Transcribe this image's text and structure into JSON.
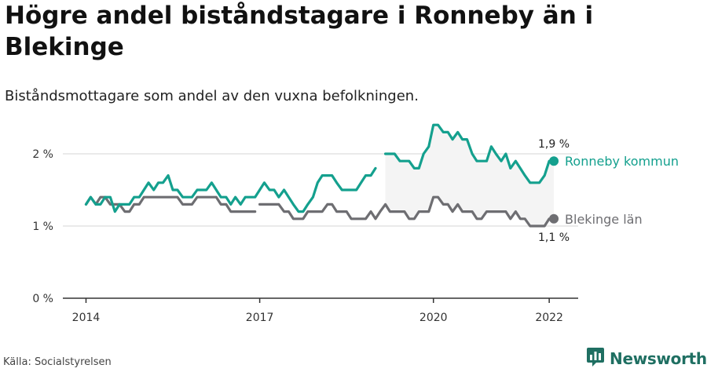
{
  "title": "Högre andel biståndstagare i Ronneby än i Blekinge",
  "subtitle": "Biståndsmottagare som andel av den vuxna befolkningen.",
  "source": "Källa: Socialstyrelsen",
  "brand": {
    "name": "Newsworthy",
    "logo_icon": "bar-chart-icon",
    "color": "#1f6f62"
  },
  "chart_data": {
    "type": "line",
    "ylim": [
      0,
      2.5
    ],
    "xlim": [
      2013.6,
      2022.5
    ],
    "y_ticks": [
      {
        "value": 0,
        "label": "0 %"
      },
      {
        "value": 1,
        "label": "1 %"
      },
      {
        "value": 2,
        "label": "2 %"
      }
    ],
    "x_ticks": [
      {
        "value": 2014,
        "label": "2014"
      },
      {
        "value": 2017,
        "label": "2017"
      },
      {
        "value": 2020,
        "label": "2020"
      },
      {
        "value": 2022,
        "label": "2022"
      }
    ],
    "grid": true,
    "series": [
      {
        "name": "Ronneby kommun",
        "color": "#14a08e",
        "end_label": "1,9 %",
        "segments": [
          {
            "x": [
              2014.0,
              2014.08,
              2014.17,
              2014.25,
              2014.33,
              2014.42,
              2014.5,
              2014.58,
              2014.67,
              2014.75,
              2014.83,
              2014.92,
              2015.0,
              2015.08,
              2015.17,
              2015.25,
              2015.33,
              2015.42,
              2015.5,
              2015.58,
              2015.67,
              2015.75,
              2015.83,
              2015.92,
              2016.0,
              2016.08,
              2016.17,
              2016.25,
              2016.33,
              2016.42,
              2016.5,
              2016.58,
              2016.67,
              2016.75,
              2016.83,
              2016.92,
              2017.0,
              2017.08,
              2017.17,
              2017.25,
              2017.33,
              2017.42,
              2017.5,
              2017.58,
              2017.67,
              2017.75,
              2017.83,
              2017.92,
              2018.0,
              2018.08,
              2018.17,
              2018.25,
              2018.33,
              2018.42,
              2018.5,
              2018.58,
              2018.67,
              2018.75,
              2018.83,
              2018.92,
              2019.0
            ],
            "y": [
              1.3,
              1.4,
              1.3,
              1.3,
              1.4,
              1.4,
              1.2,
              1.3,
              1.3,
              1.3,
              1.4,
              1.4,
              1.5,
              1.6,
              1.5,
              1.6,
              1.6,
              1.7,
              1.5,
              1.5,
              1.4,
              1.4,
              1.4,
              1.5,
              1.5,
              1.5,
              1.6,
              1.5,
              1.4,
              1.4,
              1.3,
              1.4,
              1.3,
              1.4,
              1.4,
              1.4,
              1.5,
              1.6,
              1.5,
              1.5,
              1.4,
              1.5,
              1.4,
              1.3,
              1.2,
              1.2,
              1.3,
              1.4,
              1.6,
              1.7,
              1.7,
              1.7,
              1.6,
              1.5,
              1.5,
              1.5,
              1.5,
              1.6,
              1.7,
              1.7,
              1.8
            ]
          },
          {
            "x": [
              2019.17,
              2019.25,
              2019.33,
              2019.42,
              2019.5,
              2019.58,
              2019.67,
              2019.75,
              2019.83,
              2019.92,
              2020.0,
              2020.08,
              2020.17,
              2020.25,
              2020.33,
              2020.42,
              2020.5,
              2020.58,
              2020.67,
              2020.75,
              2020.83,
              2020.92,
              2021.0,
              2021.08,
              2021.17,
              2021.25,
              2021.33,
              2021.42,
              2021.5,
              2021.58,
              2021.67,
              2021.75,
              2021.83,
              2021.92,
              2022.0,
              2022.08
            ],
            "y": [
              2.0,
              2.0,
              2.0,
              1.9,
              1.9,
              1.9,
              1.8,
              1.8,
              2.0,
              2.1,
              2.4,
              2.4,
              2.3,
              2.3,
              2.2,
              2.3,
              2.2,
              2.2,
              2.0,
              1.9,
              1.9,
              1.9,
              2.1,
              2.0,
              1.9,
              2.0,
              1.8,
              1.9,
              1.8,
              1.7,
              1.6,
              1.6,
              1.6,
              1.7,
              1.9,
              1.9
            ]
          }
        ]
      },
      {
        "name": "Blekinge län",
        "color": "#6e6e72",
        "end_label": "1,1 %",
        "segments": [
          {
            "x": [
              2014.0,
              2014.08,
              2014.17,
              2014.25,
              2014.33,
              2014.42,
              2014.5,
              2014.58,
              2014.67,
              2014.75,
              2014.83,
              2014.92,
              2015.0,
              2015.08,
              2015.17,
              2015.25,
              2015.33,
              2015.42,
              2015.5,
              2015.58,
              2015.67,
              2015.75,
              2015.83,
              2015.92,
              2016.0,
              2016.08,
              2016.17,
              2016.25,
              2016.33,
              2016.42,
              2016.5,
              2016.58,
              2016.67,
              2016.75,
              2016.83,
              2016.92
            ],
            "y": [
              1.3,
              1.4,
              1.3,
              1.4,
              1.4,
              1.3,
              1.3,
              1.3,
              1.2,
              1.2,
              1.3,
              1.3,
              1.4,
              1.4,
              1.4,
              1.4,
              1.4,
              1.4,
              1.4,
              1.4,
              1.3,
              1.3,
              1.3,
              1.4,
              1.4,
              1.4,
              1.4,
              1.4,
              1.3,
              1.3,
              1.2,
              1.2,
              1.2,
              1.2,
              1.2,
              1.2
            ]
          },
          {
            "x": [
              2017.0,
              2017.08,
              2017.17,
              2017.25,
              2017.33,
              2017.42,
              2017.5,
              2017.58,
              2017.67,
              2017.75,
              2017.83,
              2017.92,
              2018.0,
              2018.08,
              2018.17,
              2018.25,
              2018.33,
              2018.42,
              2018.5,
              2018.58,
              2018.67,
              2018.75,
              2018.83,
              2018.92,
              2019.0,
              2019.08,
              2019.17,
              2019.25,
              2019.33,
              2019.42,
              2019.5,
              2019.58,
              2019.67,
              2019.75,
              2019.83,
              2019.92,
              2020.0,
              2020.08,
              2020.17,
              2020.25,
              2020.33,
              2020.42,
              2020.5,
              2020.58,
              2020.67,
              2020.75,
              2020.83,
              2020.92,
              2021.0,
              2021.08,
              2021.17,
              2021.25,
              2021.33,
              2021.42,
              2021.5,
              2021.58,
              2021.67,
              2021.75,
              2021.83,
              2021.92,
              2022.0,
              2022.08
            ],
            "y": [
              1.3,
              1.3,
              1.3,
              1.3,
              1.3,
              1.2,
              1.2,
              1.1,
              1.1,
              1.1,
              1.2,
              1.2,
              1.2,
              1.2,
              1.3,
              1.3,
              1.2,
              1.2,
              1.2,
              1.1,
              1.1,
              1.1,
              1.1,
              1.2,
              1.1,
              1.2,
              1.3,
              1.2,
              1.2,
              1.2,
              1.2,
              1.1,
              1.1,
              1.2,
              1.2,
              1.2,
              1.4,
              1.4,
              1.3,
              1.3,
              1.2,
              1.3,
              1.2,
              1.2,
              1.2,
              1.1,
              1.1,
              1.2,
              1.2,
              1.2,
              1.2,
              1.2,
              1.1,
              1.2,
              1.1,
              1.1,
              1.0,
              1.0,
              1.0,
              1.0,
              1.1,
              1.1
            ]
          }
        ]
      }
    ]
  }
}
